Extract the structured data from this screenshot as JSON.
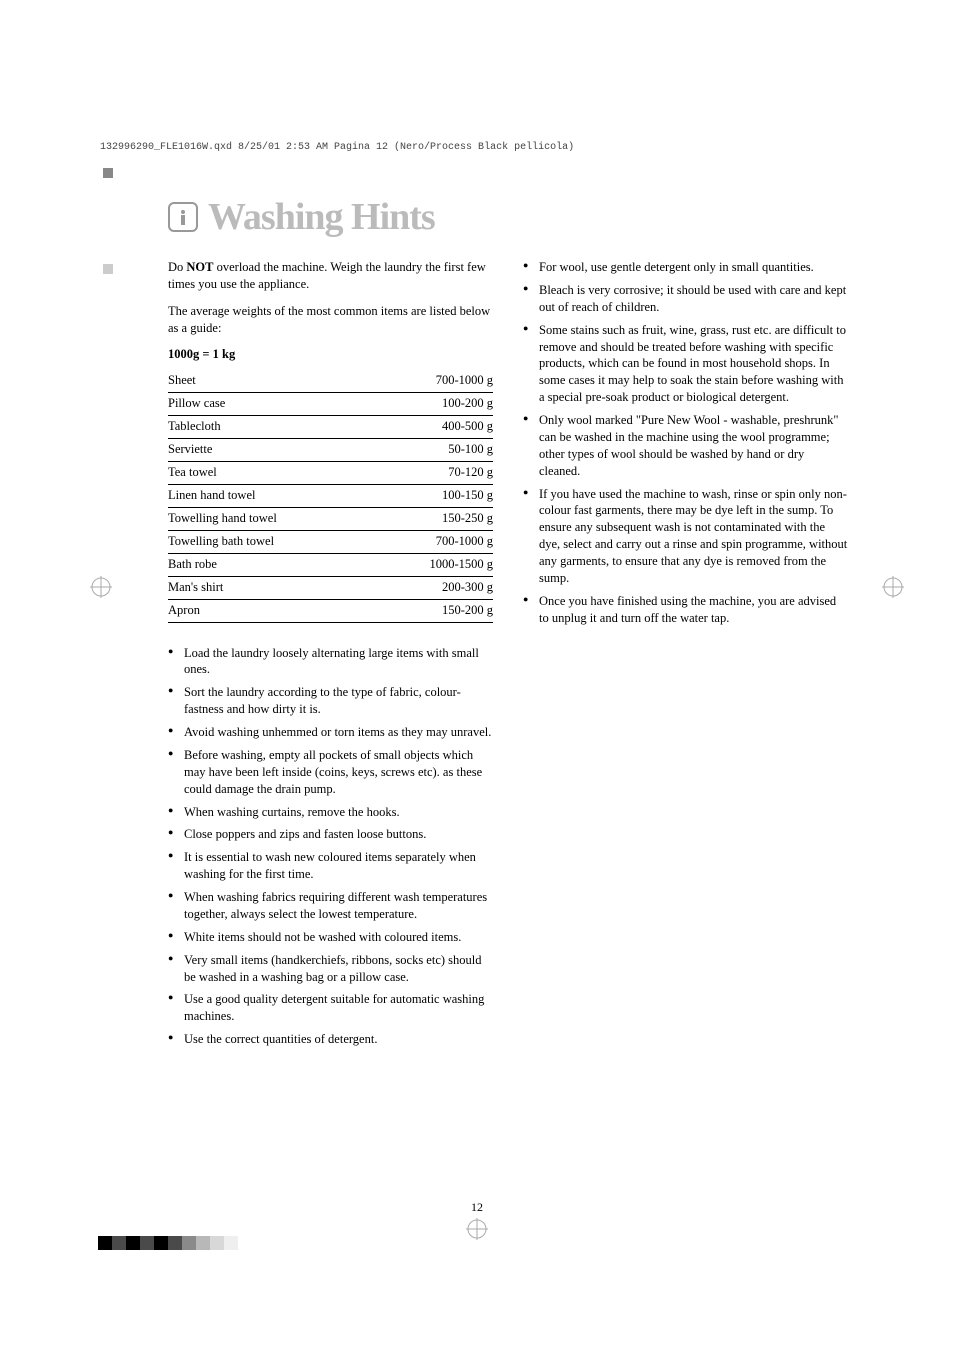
{
  "header_line": "132996290_FLE1016W.qxd  8/25/01  2:53 AM  Pagina  12   (Nero/Process Black pellicola)",
  "title": "Washing Hints",
  "intro1": "Do NOT overload the machine. Weigh the laundry the first few times you use the appliance.",
  "intro2": "The average weights of the most common items are listed below as a guide:",
  "conversion": "1000g = 1 kg",
  "weights": [
    {
      "item": "Sheet",
      "val": "700-1000 g"
    },
    {
      "item": "Pillow case",
      "val": "100-200 g"
    },
    {
      "item": "Tablecloth",
      "val": "400-500 g"
    },
    {
      "item": "Serviette",
      "val": "50-100 g"
    },
    {
      "item": "Tea towel",
      "val": "70-120 g"
    },
    {
      "item": "Linen hand towel",
      "val": "100-150 g"
    },
    {
      "item": "Towelling hand towel",
      "val": "150-250 g"
    },
    {
      "item": "Towelling bath towel",
      "val": "700-1000 g"
    },
    {
      "item": "Bath robe",
      "val": "1000-1500 g"
    },
    {
      "item": "Man's shirt",
      "val": "200-300 g"
    },
    {
      "item": "Apron",
      "val": "150-200 g"
    }
  ],
  "left_bullets": [
    "Load the laundry loosely alternating large items with small ones.",
    "Sort the laundry according to the type of fabric, colour-fastness and how dirty it is.",
    "Avoid washing unhemmed or torn items as they may unravel.",
    "Before washing, empty all pockets of small objects which may have been left inside (coins, keys, screws etc). as these could damage the drain pump.",
    "When washing curtains, remove the hooks.",
    "Close poppers and zips and fasten loose buttons.",
    "It is essential to wash new coloured items separately when washing for the first time.",
    "When washing fabrics requiring different wash temperatures together, always select the lowest temperature.",
    "White items should not be washed with coloured items.",
    "Very small items (handkerchiefs, ribbons, socks etc) should be washed in a washing bag or a pillow case.",
    "Use a good quality detergent suitable for automatic washing machines.",
    "Use the correct quantities of detergent."
  ],
  "right_bullets": [
    "For wool, use gentle detergent only in small quantities.",
    "Bleach is very corrosive; it should be used with care and kept out of reach of children.",
    "Some stains such as fruit, wine, grass, rust etc. are difficult to remove and should be treated before washing with specific products, which can be found in most household shops. In some cases it may help to soak the stain before washing with a special pre-soak product or biological detergent.",
    "Only wool marked \"Pure New Wool - washable, preshrunk\" can be washed in the machine using the wool programme; other types of wool should be washed by hand or dry cleaned.",
    "If you have used the machine to wash, rinse or spin only non-colour fast garments, there may be dye left in the sump. To ensure any subsequent wash is not contaminated with the dye, select and carry out a rinse and spin programme, without any garments, to ensure that any dye is removed from the sump.",
    "Once you have finished using the machine, you are advised to unplug it and turn off the water tap."
  ],
  "pagenum": "12",
  "colorbar": [
    "#000000",
    "#4a4a4a",
    "#000000",
    "#4a4a4a",
    "#000000",
    "#4a4a4a",
    "#8a8a8a",
    "#b8b8b8",
    "#d8d8d8",
    "#efefef"
  ]
}
